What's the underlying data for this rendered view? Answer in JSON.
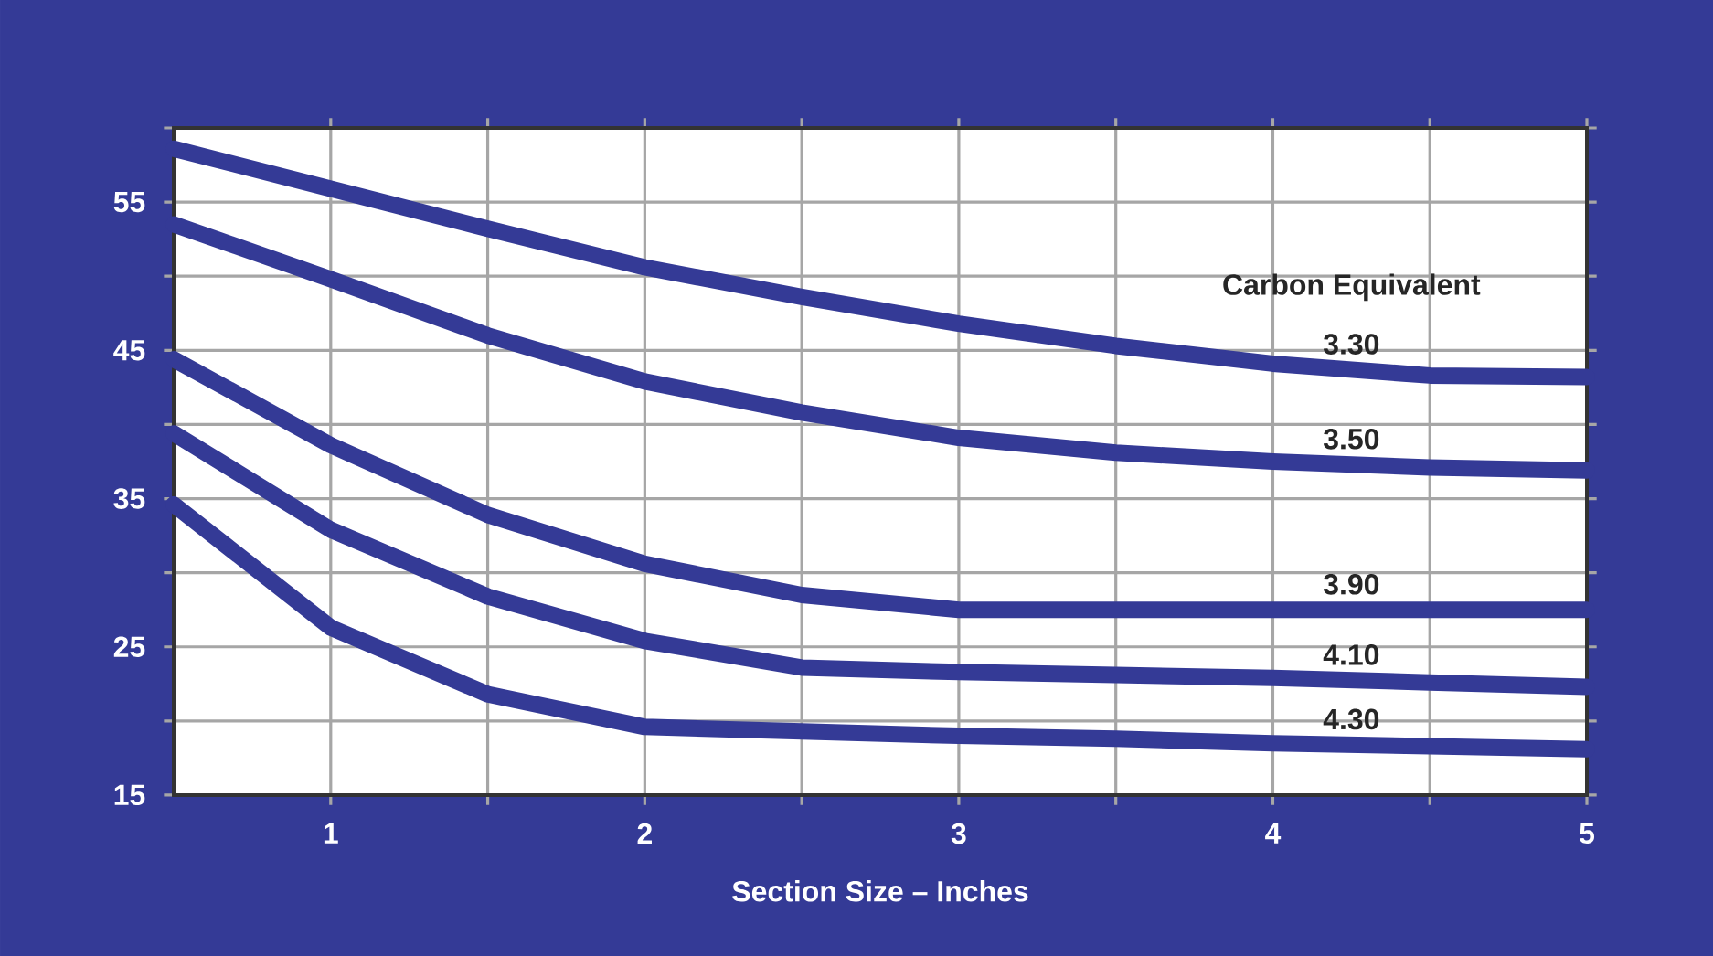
{
  "chart_data": {
    "type": "line",
    "xlabel": "Section Size – Inches",
    "legend_title": "Carbon Equivalent",
    "legend": false,
    "grid": true,
    "marker": "none",
    "line_style": "solid",
    "xlim": [
      0.5,
      5
    ],
    "ylim": [
      15,
      60
    ],
    "xticks": [
      1,
      {
        "value": 1.5,
        "label": null
      },
      2,
      {
        "value": 2.5,
        "label": null
      },
      3,
      {
        "value": 3.5,
        "label": null
      },
      4,
      {
        "value": 4.5,
        "label": null
      },
      5
    ],
    "yticks": [
      15,
      {
        "value": 20,
        "label": null
      },
      25,
      {
        "value": 30,
        "label": null
      },
      35,
      {
        "value": 40,
        "label": null
      },
      45,
      {
        "value": 50,
        "label": null
      },
      55,
      {
        "value": 60,
        "label": null
      }
    ],
    "x": [
      0.5,
      1,
      1.5,
      2,
      2.5,
      3,
      3.5,
      4,
      4.5,
      5
    ],
    "series": [
      {
        "name": "3.30",
        "color": "#343a96",
        "values": [
          58.6,
          55.9,
          53.2,
          50.6,
          48.6,
          46.8,
          45.3,
          44.1,
          43.3,
          43.2
        ]
      },
      {
        "name": "3.50",
        "color": "#343a96",
        "values": [
          53.5,
          49.8,
          46,
          42.9,
          40.8,
          39.1,
          38.1,
          37.5,
          37.1,
          36.9
        ]
      },
      {
        "name": "3.90",
        "color": "#343a96",
        "values": [
          44.4,
          38.6,
          33.9,
          30.6,
          28.5,
          27.5,
          27.5,
          27.5,
          27.5,
          27.5
        ]
      },
      {
        "name": "4.10",
        "color": "#343a96",
        "values": [
          39.4,
          32.9,
          28.4,
          25.4,
          23.6,
          23.3,
          23.1,
          22.9,
          22.6,
          22.3
        ]
      },
      {
        "name": "4.30",
        "color": "#343a96",
        "values": [
          34.6,
          26.3,
          21.8,
          19.6,
          19.3,
          19,
          18.8,
          18.5,
          18.3,
          18.1
        ]
      }
    ]
  }
}
